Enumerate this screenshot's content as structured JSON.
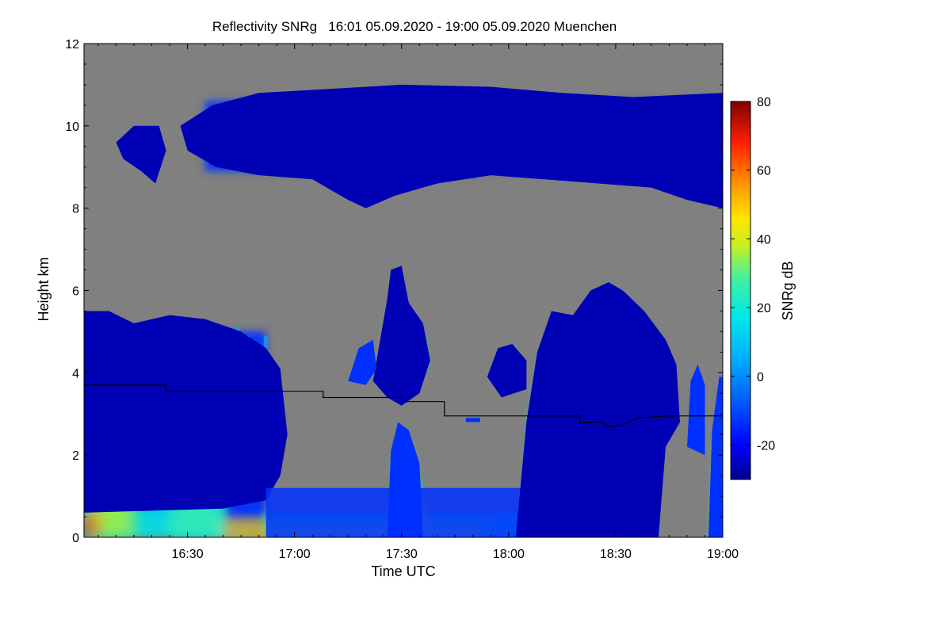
{
  "chart_data": {
    "type": "heatmap",
    "title": "Reflectivity SNRg",
    "time_range": "16:01 05.09.2020 - 19:00 05.09.2020",
    "location": "Muenchen",
    "xlabel": "Time UTC",
    "ylabel": "Height km",
    "x_range_min": [
      961,
      1140
    ],
    "y_range_km": [
      0,
      12
    ],
    "x_ticks": [
      {
        "label": "16:30",
        "minutes": 990
      },
      {
        "label": "17:00",
        "minutes": 1020
      },
      {
        "label": "17:30",
        "minutes": 1050
      },
      {
        "label": "18:00",
        "minutes": 1080
      },
      {
        "label": "18:30",
        "minutes": 1110
      },
      {
        "label": "19:00",
        "minutes": 1140
      }
    ],
    "y_ticks": [
      0,
      2,
      4,
      6,
      8,
      10,
      12
    ],
    "colorbar": {
      "label": "SNRg dB",
      "range": [
        -30,
        80
      ],
      "ticks": [
        -20,
        0,
        20,
        40,
        60,
        80
      ]
    },
    "background_color": "#808080",
    "melting_layer_km": [
      {
        "t": 961,
        "h": 3.7
      },
      {
        "t": 984,
        "h": 3.7
      },
      {
        "t": 984,
        "h": 3.55
      },
      {
        "t": 1028,
        "h": 3.55
      },
      {
        "t": 1028,
        "h": 3.4
      },
      {
        "t": 1050,
        "h": 3.4
      },
      {
        "t": 1050,
        "h": 3.3
      },
      {
        "t": 1062,
        "h": 3.3
      },
      {
        "t": 1062,
        "h": 2.95
      },
      {
        "t": 1100,
        "h": 2.95
      },
      {
        "t": 1100,
        "h": 2.78
      },
      {
        "t": 1106,
        "h": 2.8
      },
      {
        "t": 1108,
        "h": 2.68
      },
      {
        "t": 1112,
        "h": 2.73
      },
      {
        "t": 1116,
        "h": 2.9
      },
      {
        "t": 1124,
        "h": 2.95
      },
      {
        "t": 1140,
        "h": 2.95
      }
    ]
  }
}
